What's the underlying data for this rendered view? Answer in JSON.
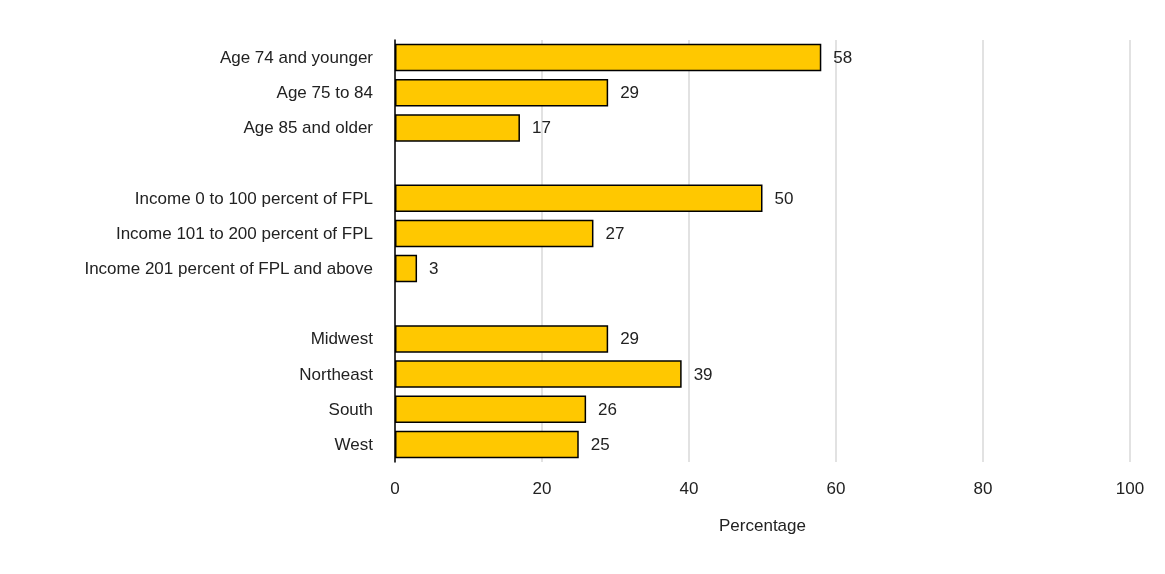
{
  "chart_data": {
    "type": "bar",
    "orientation": "horizontal",
    "xlabel": "Percentage",
    "categories": [
      "Age 74 and younger",
      "Age 75 to 84",
      "Age 85 and older",
      null,
      "Income 0 to 100 percent of FPL",
      "Income 101 to 200 percent of FPL",
      "Income 201 percent of FPL and above",
      null,
      "Midwest",
      "Northeast",
      "South",
      "West"
    ],
    "values": [
      58,
      29,
      17,
      null,
      50,
      27,
      3,
      null,
      29,
      39,
      26,
      25
    ],
    "color": "#ffc800",
    "xlim": [
      0,
      100
    ],
    "xticks": [
      0,
      20,
      40,
      60,
      80,
      100
    ],
    "grid": "x",
    "data_labels": true
  }
}
